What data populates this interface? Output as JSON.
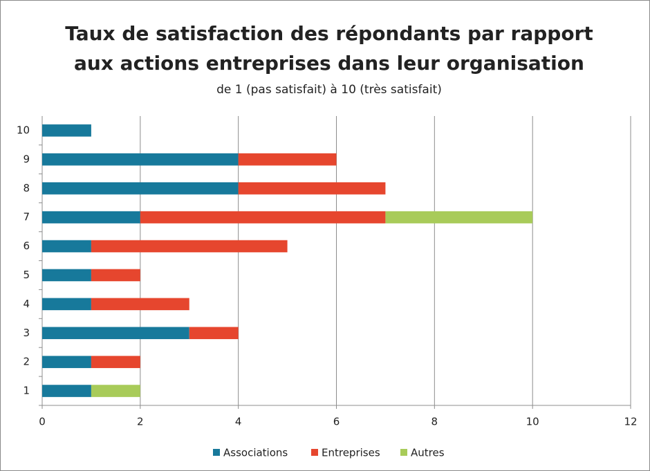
{
  "chart_data": {
    "type": "stacked_barh",
    "title": [
      "Taux de satisfaction des répondants par rapport",
      "aux actions entreprises dans leur organisation"
    ],
    "subtitle": "de 1 (pas satisfait) à 10  (très satisfait)",
    "categories": [
      "1",
      "2",
      "3",
      "4",
      "5",
      "6",
      "7",
      "8",
      "9",
      "10"
    ],
    "series": [
      {
        "name": "Associations",
        "color": "#17799b",
        "values": [
          1,
          1,
          3,
          1,
          1,
          1,
          2,
          4,
          4,
          1
        ]
      },
      {
        "name": "Entreprises",
        "color": "#e6462e",
        "values": [
          0,
          1,
          1,
          2,
          1,
          4,
          5,
          3,
          2,
          0
        ]
      },
      {
        "name": "Autres",
        "color": "#a8cb59",
        "values": [
          1,
          0,
          0,
          0,
          0,
          0,
          3,
          0,
          0,
          0
        ]
      }
    ],
    "xlim": [
      0,
      12
    ],
    "xticks": [
      0,
      2,
      4,
      6,
      8,
      10,
      12
    ],
    "grid": true,
    "legend": "bottom"
  }
}
